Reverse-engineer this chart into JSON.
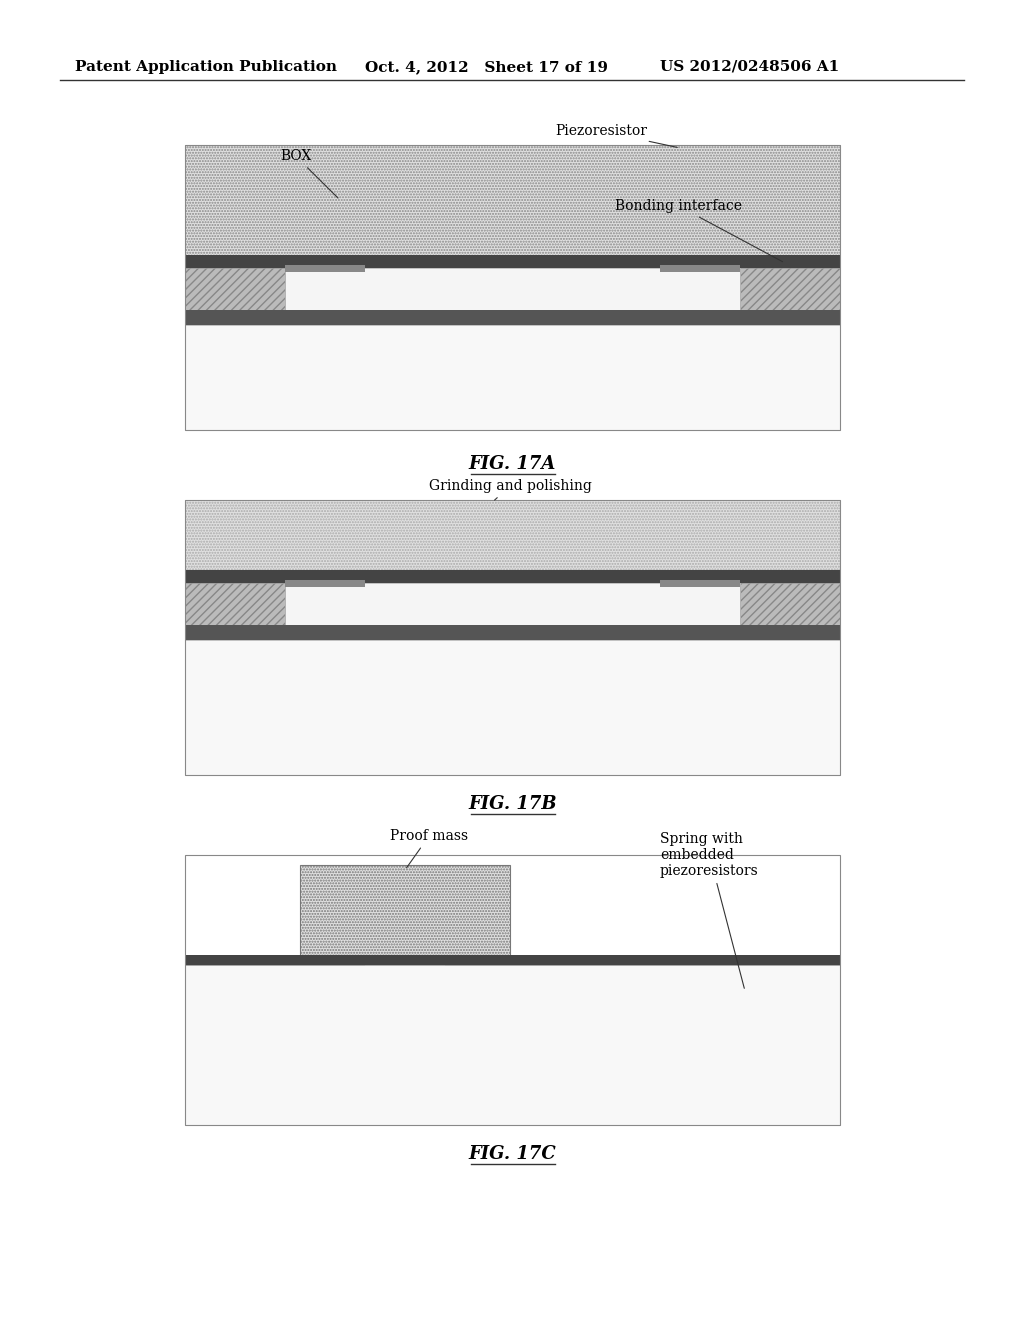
{
  "bg_color": "#ffffff",
  "header_left": "Patent Application Publication",
  "header_mid": "Oct. 4, 2012   Sheet 17 of 19",
  "header_right": "US 2012/0248506 A1",
  "fig17a_label": "FIG. 17A",
  "fig17b_label": "FIG. 17B",
  "fig17c_label": "FIG. 17C",
  "ann_box": "BOX",
  "ann_piezo": "Piezoresistor",
  "ann_bonding": "Bonding interface",
  "ann_grinding": "Grinding and polishing",
  "ann_proof": "Proof mass",
  "ann_spring": "Spring with\nembedded\npiezoresistors",
  "colors": {
    "dot_pattern_fc": "#e0e0e0",
    "dark_layer": "#444444",
    "hatch_fc": "#bbbbbb",
    "white_region": "#f5f5f5",
    "substrate_fc": "#f8f8f8",
    "box_outline": "#888888",
    "dark_bottom": "#555555",
    "header_line": "#333333",
    "ann_line": "#333333"
  }
}
